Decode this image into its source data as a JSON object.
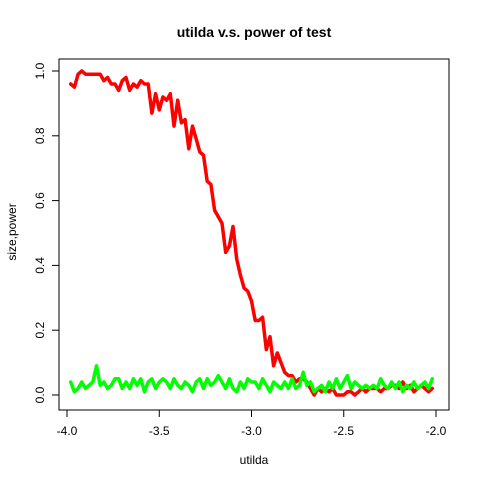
{
  "chart_data": {
    "type": "line",
    "title": "utilda v.s. power of test",
    "xlabel": "utilda",
    "ylabel": "size,power",
    "xlim": [
      -4.0,
      -2.0
    ],
    "ylim": [
      0.0,
      1.0
    ],
    "xticks": [
      -4.0,
      -3.5,
      -3.0,
      -2.5,
      -2.0
    ],
    "xtick_labels": [
      "-4.0",
      "-3.5",
      "-3.0",
      "-2.5",
      "-2.0"
    ],
    "yticks": [
      0.0,
      0.2,
      0.4,
      0.6,
      0.8,
      1.0
    ],
    "ytick_labels": [
      "0.0",
      "0.2",
      "0.4",
      "0.6",
      "0.8",
      "1.0"
    ],
    "grid": false,
    "series": [
      {
        "color": "#ff0000",
        "points": [
          [
            -3.98,
            0.96
          ],
          [
            -3.96,
            0.95
          ],
          [
            -3.94,
            0.99
          ],
          [
            -3.92,
            1.0
          ],
          [
            -3.9,
            0.99
          ],
          [
            -3.88,
            0.99
          ],
          [
            -3.86,
            0.99
          ],
          [
            -3.84,
            0.99
          ],
          [
            -3.82,
            0.99
          ],
          [
            -3.8,
            0.97
          ],
          [
            -3.78,
            0.98
          ],
          [
            -3.76,
            0.96
          ],
          [
            -3.74,
            0.96
          ],
          [
            -3.72,
            0.94
          ],
          [
            -3.7,
            0.97
          ],
          [
            -3.68,
            0.98
          ],
          [
            -3.66,
            0.94
          ],
          [
            -3.64,
            0.96
          ],
          [
            -3.62,
            0.95
          ],
          [
            -3.6,
            0.97
          ],
          [
            -3.58,
            0.96
          ],
          [
            -3.56,
            0.96
          ],
          [
            -3.54,
            0.87
          ],
          [
            -3.52,
            0.93
          ],
          [
            -3.5,
            0.88
          ],
          [
            -3.48,
            0.92
          ],
          [
            -3.46,
            0.91
          ],
          [
            -3.44,
            0.93
          ],
          [
            -3.42,
            0.83
          ],
          [
            -3.4,
            0.91
          ],
          [
            -3.38,
            0.84
          ],
          [
            -3.36,
            0.85
          ],
          [
            -3.34,
            0.76
          ],
          [
            -3.32,
            0.83
          ],
          [
            -3.3,
            0.79
          ],
          [
            -3.28,
            0.75
          ],
          [
            -3.26,
            0.74
          ],
          [
            -3.24,
            0.66
          ],
          [
            -3.22,
            0.65
          ],
          [
            -3.2,
            0.57
          ],
          [
            -3.18,
            0.55
          ],
          [
            -3.16,
            0.53
          ],
          [
            -3.14,
            0.44
          ],
          [
            -3.12,
            0.46
          ],
          [
            -3.1,
            0.52
          ],
          [
            -3.08,
            0.42
          ],
          [
            -3.06,
            0.37
          ],
          [
            -3.04,
            0.33
          ],
          [
            -3.02,
            0.32
          ],
          [
            -3.0,
            0.29
          ],
          [
            -2.98,
            0.23
          ],
          [
            -2.96,
            0.23
          ],
          [
            -2.94,
            0.24
          ],
          [
            -2.92,
            0.14
          ],
          [
            -2.9,
            0.18
          ],
          [
            -2.88,
            0.09
          ],
          [
            -2.86,
            0.13
          ],
          [
            -2.84,
            0.1
          ],
          [
            -2.82,
            0.07
          ],
          [
            -2.8,
            0.06
          ],
          [
            -2.78,
            0.06
          ],
          [
            -2.76,
            0.04
          ],
          [
            -2.74,
            0.05
          ],
          [
            -2.72,
            0.05
          ],
          [
            -2.7,
            0.04
          ],
          [
            -2.68,
            0.02
          ],
          [
            -2.66,
            0.0
          ],
          [
            -2.64,
            0.02
          ],
          [
            -2.62,
            0.01
          ],
          [
            -2.6,
            0.02
          ],
          [
            -2.58,
            0.01
          ],
          [
            -2.56,
            0.02
          ],
          [
            -2.54,
            0.0
          ],
          [
            -2.52,
            0.0
          ],
          [
            -2.5,
            0.0
          ],
          [
            -2.48,
            0.01
          ],
          [
            -2.46,
            0.01
          ],
          [
            -2.44,
            0.0
          ],
          [
            -2.42,
            0.01
          ],
          [
            -2.4,
            0.02
          ],
          [
            -2.38,
            0.01
          ],
          [
            -2.36,
            0.02
          ],
          [
            -2.34,
            0.02
          ],
          [
            -2.32,
            0.02
          ],
          [
            -2.3,
            0.01
          ],
          [
            -2.28,
            0.02
          ],
          [
            -2.26,
            0.02
          ],
          [
            -2.24,
            0.03
          ],
          [
            -2.22,
            0.03
          ],
          [
            -2.2,
            0.02
          ],
          [
            -2.18,
            0.04
          ],
          [
            -2.16,
            0.02
          ],
          [
            -2.14,
            0.03
          ],
          [
            -2.12,
            0.01
          ],
          [
            -2.1,
            0.02
          ],
          [
            -2.08,
            0.03
          ],
          [
            -2.06,
            0.02
          ],
          [
            -2.04,
            0.01
          ],
          [
            -2.02,
            0.02
          ]
        ]
      },
      {
        "color": "#00ff00",
        "points": [
          [
            -3.98,
            0.04
          ],
          [
            -3.96,
            0.01
          ],
          [
            -3.94,
            0.02
          ],
          [
            -3.92,
            0.04
          ],
          [
            -3.9,
            0.02
          ],
          [
            -3.88,
            0.03
          ],
          [
            -3.86,
            0.04
          ],
          [
            -3.84,
            0.09
          ],
          [
            -3.82,
            0.03
          ],
          [
            -3.8,
            0.04
          ],
          [
            -3.78,
            0.02
          ],
          [
            -3.76,
            0.03
          ],
          [
            -3.74,
            0.05
          ],
          [
            -3.72,
            0.05
          ],
          [
            -3.7,
            0.02
          ],
          [
            -3.68,
            0.04
          ],
          [
            -3.66,
            0.02
          ],
          [
            -3.64,
            0.05
          ],
          [
            -3.62,
            0.03
          ],
          [
            -3.6,
            0.05
          ],
          [
            -3.58,
            0.01
          ],
          [
            -3.56,
            0.04
          ],
          [
            -3.54,
            0.05
          ],
          [
            -3.52,
            0.02
          ],
          [
            -3.5,
            0.04
          ],
          [
            -3.48,
            0.05
          ],
          [
            -3.46,
            0.04
          ],
          [
            -3.44,
            0.02
          ],
          [
            -3.42,
            0.05
          ],
          [
            -3.4,
            0.03
          ],
          [
            -3.38,
            0.02
          ],
          [
            -3.36,
            0.04
          ],
          [
            -3.34,
            0.03
          ],
          [
            -3.32,
            0.01
          ],
          [
            -3.3,
            0.04
          ],
          [
            -3.28,
            0.05
          ],
          [
            -3.26,
            0.02
          ],
          [
            -3.24,
            0.05
          ],
          [
            -3.22,
            0.03
          ],
          [
            -3.2,
            0.04
          ],
          [
            -3.18,
            0.06
          ],
          [
            -3.16,
            0.04
          ],
          [
            -3.14,
            0.02
          ],
          [
            -3.12,
            0.05
          ],
          [
            -3.1,
            0.02
          ],
          [
            -3.08,
            0.01
          ],
          [
            -3.06,
            0.04
          ],
          [
            -3.04,
            0.02
          ],
          [
            -3.02,
            0.05
          ],
          [
            -3.0,
            0.04
          ],
          [
            -2.98,
            0.04
          ],
          [
            -2.96,
            0.02
          ],
          [
            -2.94,
            0.05
          ],
          [
            -2.92,
            0.03
          ],
          [
            -2.9,
            0.01
          ],
          [
            -2.88,
            0.04
          ],
          [
            -2.86,
            0.03
          ],
          [
            -2.84,
            0.02
          ],
          [
            -2.82,
            0.04
          ],
          [
            -2.8,
            0.02
          ],
          [
            -2.78,
            0.05
          ],
          [
            -2.76,
            0.02
          ],
          [
            -2.74,
            0.03
          ],
          [
            -2.72,
            0.07
          ],
          [
            -2.7,
            0.03
          ],
          [
            -2.68,
            0.04
          ],
          [
            -2.66,
            0.01
          ],
          [
            -2.64,
            0.02
          ],
          [
            -2.62,
            0.03
          ],
          [
            -2.6,
            0.01
          ],
          [
            -2.58,
            0.04
          ],
          [
            -2.56,
            0.02
          ],
          [
            -2.54,
            0.05
          ],
          [
            -2.52,
            0.02
          ],
          [
            -2.5,
            0.04
          ],
          [
            -2.48,
            0.06
          ],
          [
            -2.46,
            0.02
          ],
          [
            -2.44,
            0.04
          ],
          [
            -2.42,
            0.03
          ],
          [
            -2.4,
            0.02
          ],
          [
            -2.38,
            0.03
          ],
          [
            -2.36,
            0.02
          ],
          [
            -2.34,
            0.03
          ],
          [
            -2.32,
            0.02
          ],
          [
            -2.3,
            0.05
          ],
          [
            -2.28,
            0.03
          ],
          [
            -2.26,
            0.02
          ],
          [
            -2.24,
            0.04
          ],
          [
            -2.22,
            0.02
          ],
          [
            -2.2,
            0.04
          ],
          [
            -2.18,
            0.01
          ],
          [
            -2.16,
            0.03
          ],
          [
            -2.14,
            0.02
          ],
          [
            -2.12,
            0.04
          ],
          [
            -2.1,
            0.02
          ],
          [
            -2.08,
            0.03
          ],
          [
            -2.06,
            0.04
          ],
          [
            -2.04,
            0.02
          ],
          [
            -2.02,
            0.05
          ]
        ]
      }
    ]
  }
}
